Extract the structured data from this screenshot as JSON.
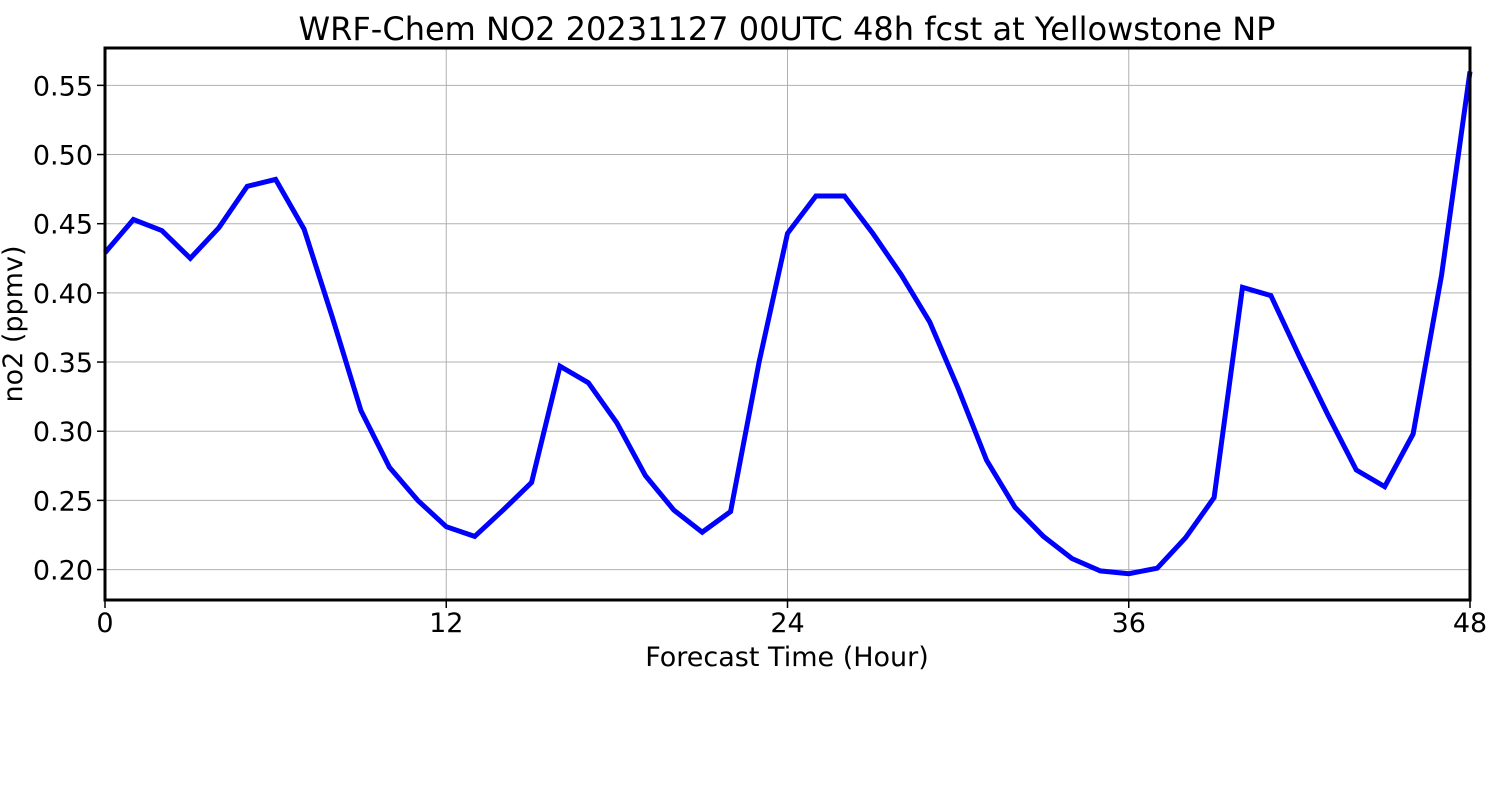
{
  "chart_data": {
    "type": "line",
    "title": "WRF-Chem NO2  20231127 00UTC 48h fcst at Yellowstone NP",
    "xlabel": "Forecast Time (Hour)",
    "ylabel": "no2  (ppmv)",
    "xlim": [
      0,
      48
    ],
    "ylim": [
      0.178,
      0.577
    ],
    "xticks": [
      0,
      12,
      24,
      36,
      48
    ],
    "xtick_labels": [
      "0",
      "12",
      "24",
      "36",
      "48"
    ],
    "yticks": [
      0.2,
      0.25,
      0.3,
      0.35,
      0.4,
      0.45,
      0.5,
      0.55
    ],
    "ytick_labels": [
      "0.20",
      "0.25",
      "0.30",
      "0.35",
      "0.40",
      "0.45",
      "0.50",
      "0.55"
    ],
    "grid": true,
    "legend": "none",
    "series": [
      {
        "color": "#0000ff",
        "x": [
          0,
          1,
          2,
          3,
          4,
          5,
          6,
          7,
          8,
          9,
          10,
          11,
          12,
          13,
          14,
          15,
          16,
          17,
          18,
          19,
          20,
          21,
          22,
          23,
          24,
          25,
          26,
          27,
          28,
          29,
          30,
          31,
          32,
          33,
          34,
          35,
          36,
          37,
          38,
          39,
          40,
          41,
          42,
          43,
          44,
          45,
          46,
          47,
          48
        ],
        "y": [
          0.429,
          0.453,
          0.445,
          0.425,
          0.447,
          0.477,
          0.482,
          0.446,
          0.382,
          0.315,
          0.274,
          0.25,
          0.231,
          0.224,
          0.243,
          0.263,
          0.347,
          0.335,
          0.306,
          0.268,
          0.243,
          0.227,
          0.242,
          0.35,
          0.443,
          0.47,
          0.47,
          0.443,
          0.413,
          0.379,
          0.331,
          0.279,
          0.245,
          0.224,
          0.208,
          0.199,
          0.197,
          0.201,
          0.223,
          0.252,
          0.404,
          0.398,
          0.354,
          0.312,
          0.272,
          0.26,
          0.298,
          0.413,
          0.56
        ]
      }
    ]
  }
}
